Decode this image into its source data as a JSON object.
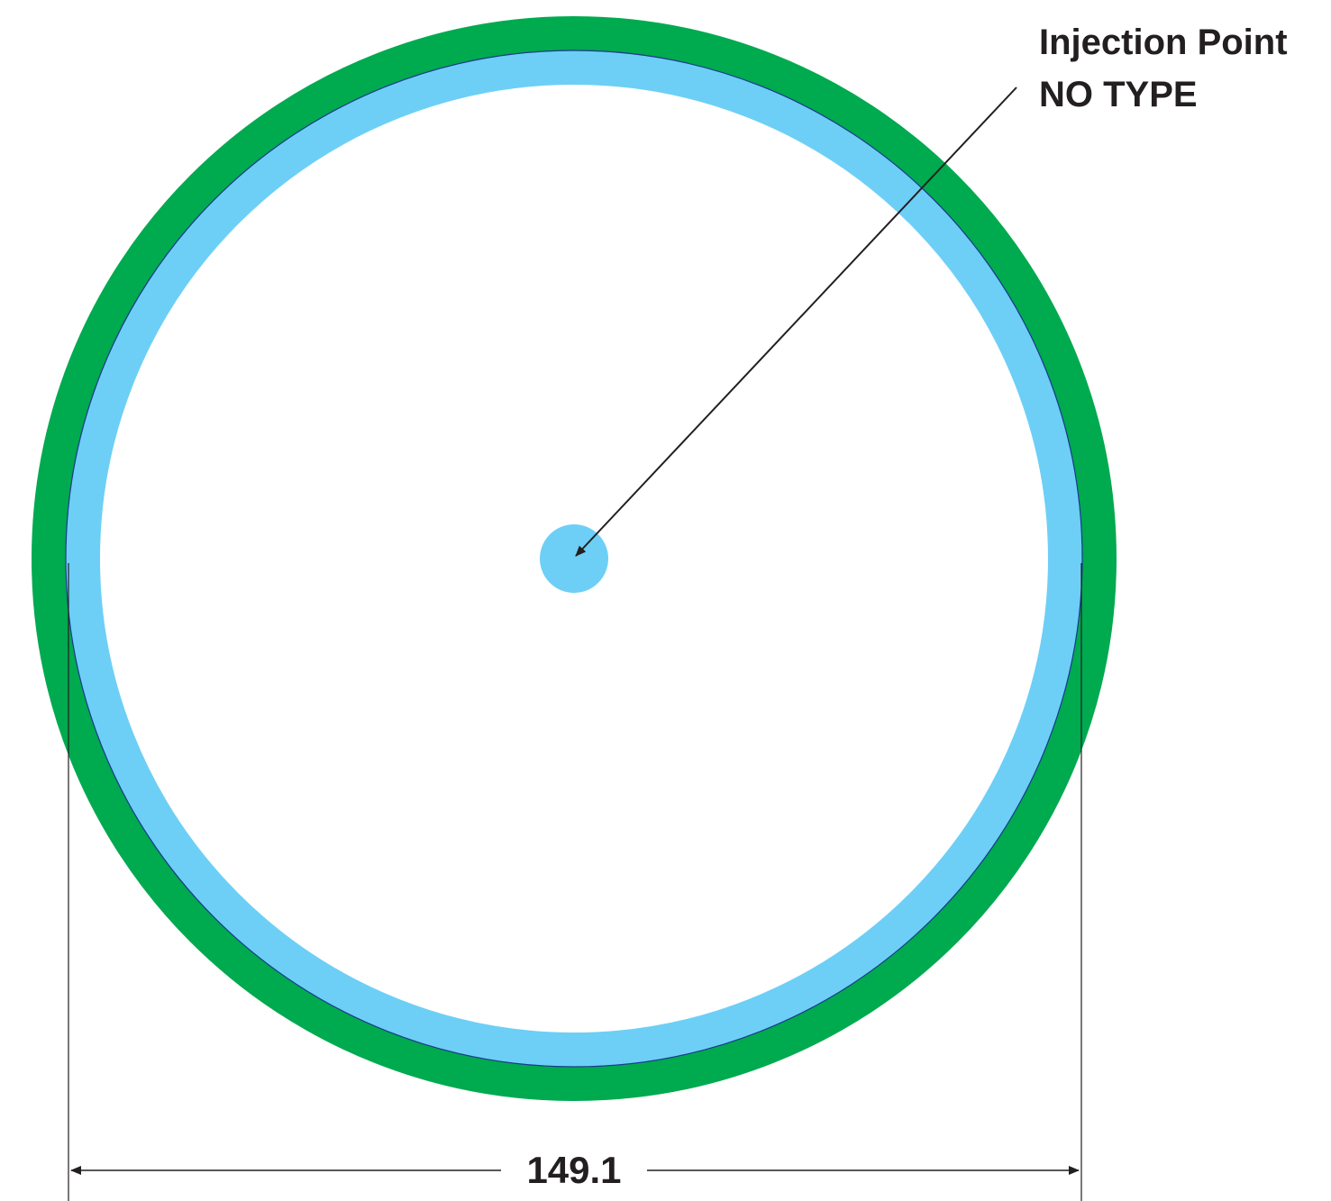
{
  "annotation": {
    "line1": "Injection Point",
    "line2": "NO TYPE"
  },
  "dimension": {
    "value": "149.1"
  },
  "colors": {
    "outer_ring": "#00aa4f",
    "inner_ring": "#6dcff6",
    "ring_edge": "#1b3a8c",
    "injection_dot": "#6dcff6",
    "line": "#231f20",
    "background": "#ffffff"
  }
}
